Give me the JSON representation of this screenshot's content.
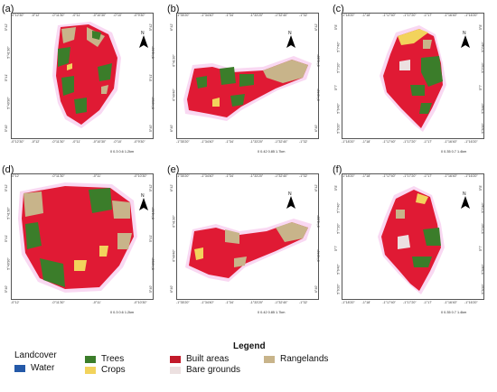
{
  "panels": [
    {
      "label": "(a)",
      "top_ticks": [
        "-0°12'30\"",
        "-0°12'",
        "-0°11'30\"",
        "-0°11'",
        "-0°10'30\"",
        "-0°10'",
        "-0°9'30\""
      ],
      "bottom_ticks": [
        "-0°12'30\"",
        "-0°12'",
        "-0°11'30\"",
        "-0°11'",
        "-0°10'30\"",
        "-0°10'",
        "-0°9'30\""
      ],
      "side_ticks": [
        "5°42'",
        "5°41'30\"",
        "5°41'",
        "5°40'30\"",
        "5°40'"
      ],
      "scale": "0  0.3 0.6      1.2km"
    },
    {
      "label": "(b)",
      "top_ticks": [
        "-1°35'20\"",
        "-1°34'40\"",
        "-1°34'",
        "-1°33'20\"",
        "-1°32'40\"",
        "-1°32'"
      ],
      "bottom_ticks": [
        "-1°35'20\"",
        "-1°34'40\"",
        "-1°34'",
        "-1°33'20\"",
        "-1°32'40\"",
        "-1°32'"
      ],
      "side_ticks": [
        "6°42'",
        "6°41'20\"",
        "6°40'40\"",
        "6°40'"
      ],
      "scale": "0  0.42 0.85         1.7km"
    },
    {
      "label": "(c)",
      "top_ticks": [
        "-1°18'20\"",
        "-1°18'",
        "-1°17'40\"",
        "-1°17'20\"",
        "-1°17'",
        "-1°16'40\"",
        "-1°16'20\""
      ],
      "bottom_ticks": [
        "-1°18'20\"",
        "-1°18'",
        "-1°17'40\"",
        "-1°17'20\"",
        "-1°17'",
        "-1°16'40\"",
        "-1°16'20\""
      ],
      "side_ticks": [
        "5°8'",
        "5°7'40\"",
        "5°7'20\"",
        "5°7'",
        "5°6'40\"",
        "5°6'20\""
      ],
      "scale": "0  0.35 0.7      1.4km"
    },
    {
      "label": "(d)",
      "top_ticks": [
        "-0°12'",
        "-0°11'30\"",
        "-0°11'",
        "-0°10'30\""
      ],
      "bottom_ticks": [
        "-0°12'",
        "-0°11'30\"",
        "-0°11'",
        "-0°10'30\""
      ],
      "side_ticks": [
        "5°42'",
        "5°41'30\"",
        "5°41'",
        "5°40'30\"",
        "5°40'"
      ],
      "scale": "0  0.3 0.6      1.2km"
    },
    {
      "label": "(e)",
      "top_ticks": [
        "-1°35'20\"",
        "-1°34'40\"",
        "-1°34'",
        "-1°33'20\"",
        "-1°32'40\"",
        "-1°32'"
      ],
      "bottom_ticks": [
        "-1°35'20\"",
        "-1°34'40\"",
        "-1°34'",
        "-1°33'20\"",
        "-1°32'40\"",
        "-1°32'"
      ],
      "side_ticks": [
        "6°42'",
        "6°41'20\"",
        "6°40'40\"",
        "6°40'"
      ],
      "scale": "0  0.42 0.85         1.7km"
    },
    {
      "label": "(f)",
      "top_ticks": [
        "-1°18'20\"",
        "-1°18'",
        "-1°17'40\"",
        "-1°17'20\"",
        "-1°17'",
        "-1°16'40\"",
        "-1°16'20\""
      ],
      "bottom_ticks": [
        "-1°18'20\"",
        "-1°18'",
        "-1°17'40\"",
        "-1°17'20\"",
        "-1°17'",
        "-1°16'40\"",
        "-1°16'20\""
      ],
      "side_ticks": [
        "5°8'",
        "5°7'40\"",
        "5°7'20\"",
        "5°7'",
        "5°6'40\"",
        "5°6'20\""
      ],
      "scale": "0  0.35 0.7      1.4km"
    }
  ],
  "north_label": "N",
  "legend": {
    "title": "Legend",
    "group_label": "Landcover",
    "items": [
      {
        "label": "Water",
        "color": "#2459a8"
      },
      {
        "label": "Trees",
        "color": "#3b7d2a"
      },
      {
        "label": "Crops",
        "color": "#f2d35c"
      },
      {
        "label": "Built areas",
        "color": "#c21a2a"
      },
      {
        "label": "Bare grounds",
        "color": "#ece0e0"
      },
      {
        "label": "Rangelands",
        "color": "#c8b48a"
      }
    ]
  },
  "colors": {
    "built": "#e01a34",
    "trees": "#3b7d2a",
    "crops": "#f2d35c",
    "range": "#c8b48a",
    "bare": "#ece0e0",
    "halo": "#f4b8e8"
  }
}
